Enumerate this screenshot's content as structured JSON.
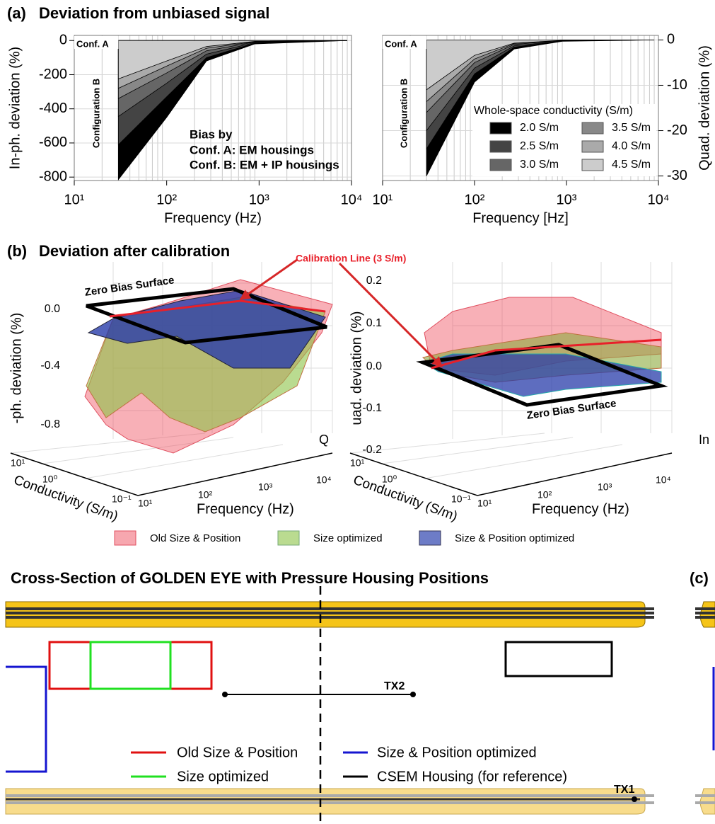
{
  "panel_a": {
    "label": "(a)",
    "title": "Deviation from unbiased signal"
  },
  "chart_data": [
    {
      "type": "area",
      "x_label": "Frequency (Hz)",
      "y_label": "In-ph. deviation (%)",
      "x": [
        30,
        100,
        270,
        900,
        9000
      ],
      "log_x": true,
      "grid": true,
      "xlim": [
        10,
        10000
      ],
      "xticks": [
        {
          "value": 10,
          "label": "10¹"
        },
        {
          "value": 100,
          "label": "10²"
        },
        {
          "value": 1000,
          "label": "10³"
        },
        {
          "value": 10000,
          "label": "10⁴"
        }
      ],
      "ylim": [
        -820,
        30
      ],
      "yticks": [
        0,
        -200,
        -400,
        -600,
        -800
      ],
      "y_axis_side": "left",
      "series": [
        {
          "color": "#000000",
          "values": [
            -815,
            -450,
            -120,
            -20,
            0
          ]
        },
        {
          "color": "#444444",
          "values": [
            -610,
            -330,
            -100,
            -15,
            0
          ]
        },
        {
          "color": "#666666",
          "values": [
            -445,
            -250,
            -80,
            -12,
            0
          ]
        },
        {
          "color": "#888888",
          "values": [
            -340,
            -190,
            -60,
            -9,
            0
          ]
        },
        {
          "color": "#aaaaaa",
          "values": [
            -280,
            -150,
            -45,
            -7,
            0
          ]
        },
        {
          "color": "#cccccc",
          "values": [
            -225,
            -120,
            -35,
            -5,
            0
          ]
        }
      ],
      "annotations": [
        "Conf. A",
        "Configuration B",
        "Bias by",
        "Conf. A: EM housings",
        "Conf. B: EM + IP housings"
      ]
    },
    {
      "type": "area",
      "x_label": "Frequency [Hz]",
      "y_label": "Quad. deviation (%)",
      "x": [
        30,
        100,
        270,
        900,
        9000
      ],
      "log_x": true,
      "grid": true,
      "xlim": [
        10,
        10000
      ],
      "xticks": [
        {
          "value": 10,
          "label": "10¹"
        },
        {
          "value": 100,
          "label": "10²"
        },
        {
          "value": 1000,
          "label": "10³"
        },
        {
          "value": 10000,
          "label": "10⁴"
        }
      ],
      "ylim": [
        -31,
        1
      ],
      "yticks": [
        0,
        -10,
        -20,
        -30
      ],
      "y_axis_side": "right",
      "legend": "lower right",
      "legend_title": "Whole-space conductivity (S/m)",
      "series": [
        {
          "name": "2.0 S/m",
          "color": "#000000",
          "values": [
            -30,
            -9.3,
            -2,
            -0.3,
            0
          ]
        },
        {
          "name": "2.5 S/m",
          "color": "#444444",
          "values": [
            -24,
            -7.5,
            -1.6,
            -0.2,
            0
          ]
        },
        {
          "name": "3.0 S/m",
          "color": "#666666",
          "values": [
            -20,
            -6.2,
            -1.3,
            -0.2,
            0
          ]
        },
        {
          "name": "3.5 S/m",
          "color": "#888888",
          "values": [
            -16,
            -5,
            -1,
            -0.1,
            0
          ]
        },
        {
          "name": "4.0 S/m",
          "color": "#aaaaaa",
          "values": [
            -13.6,
            -4.2,
            -0.8,
            -0.1,
            0
          ]
        },
        {
          "name": "4.5 S/m",
          "color": "#cccccc",
          "values": [
            -11,
            -3.4,
            -0.7,
            -0.1,
            0
          ]
        }
      ],
      "annotations": [
        "Conf. A",
        "Configuration B"
      ]
    }
  ],
  "panel_b": {
    "label": "(b)",
    "title": "Deviation after calibration",
    "calibration_label": "Calibration Line (3 S/m)",
    "zero_label_left": "Zero Bias Surface",
    "zero_label_right": "Zero Bias Surface",
    "left_z_label": "-ph. deviation (%)",
    "right_z_label": "uad. deviation (%)",
    "left_z_ticks": [
      "0.0",
      "-0.4",
      "-0.8"
    ],
    "right_z_ticks": [
      "0.2",
      "0.1",
      "0.0",
      "-0.1",
      "-0.2"
    ],
    "edge_labels": [
      "Q",
      "In"
    ],
    "conductivity_label": "Conductivity (S/m)",
    "conductivity_ticks": [
      "10¹",
      "10⁰",
      "10⁻¹"
    ],
    "frequency_label": "Frequency (Hz)",
    "frequency_ticks": [
      "10¹",
      "10²",
      "10³",
      "10⁴"
    ],
    "legend": [
      "Old Size & Position",
      "Size optimized",
      "Size & Position optimized"
    ]
  },
  "panel_c": {
    "title": "Cross-Section of GOLDEN EYE with Pressure Housing Positions",
    "label": "(c)",
    "tx2": "TX2",
    "tx1": "TX1",
    "legend": [
      "Old Size & Position",
      "Size & Position optimized",
      "Size optimized",
      "CSEM Housing (for reference)"
    ]
  }
}
